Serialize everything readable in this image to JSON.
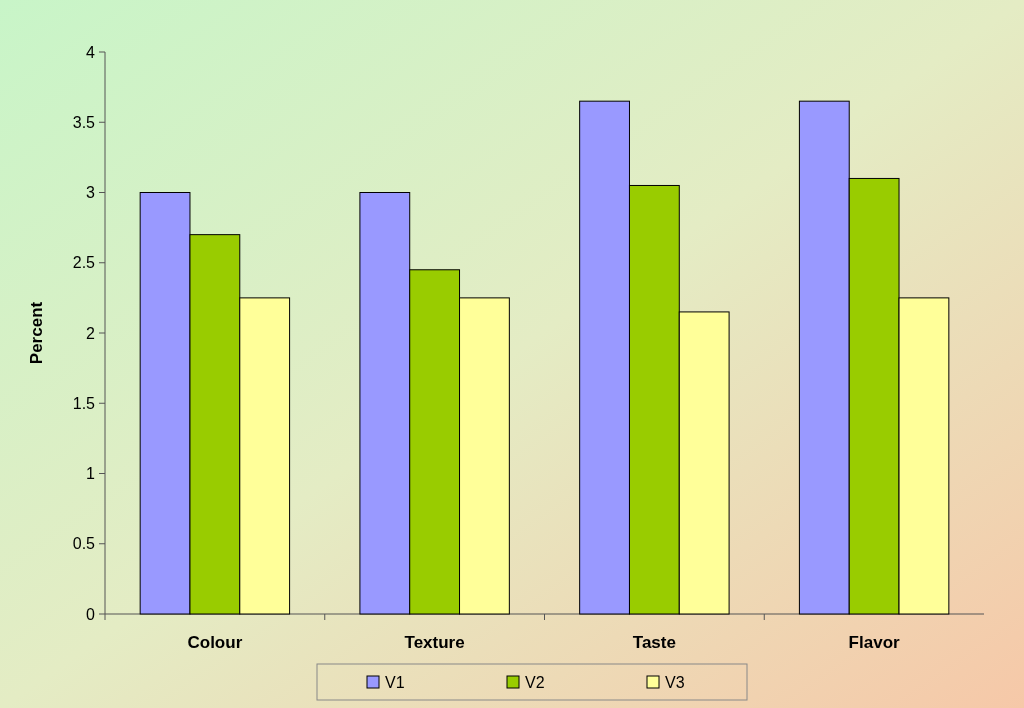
{
  "chart_data": {
    "type": "bar",
    "ylabel": "Percent",
    "categories": [
      "Colour",
      "Texture",
      "Taste",
      "Flavor"
    ],
    "series": [
      {
        "name": "V1",
        "color": "#9999ff",
        "values": [
          3.0,
          3.0,
          3.65,
          3.65
        ]
      },
      {
        "name": "V2",
        "color": "#99cc00",
        "values": [
          2.7,
          2.45,
          3.05,
          3.1
        ]
      },
      {
        "name": "V3",
        "color": "#ffff99",
        "values": [
          2.25,
          2.25,
          2.15,
          2.25
        ]
      }
    ],
    "ylim": [
      0,
      4
    ],
    "yticks": [
      0,
      0.5,
      1,
      1.5,
      2,
      2.5,
      3,
      3.5,
      4
    ],
    "grid": false,
    "legend": "bottom"
  }
}
